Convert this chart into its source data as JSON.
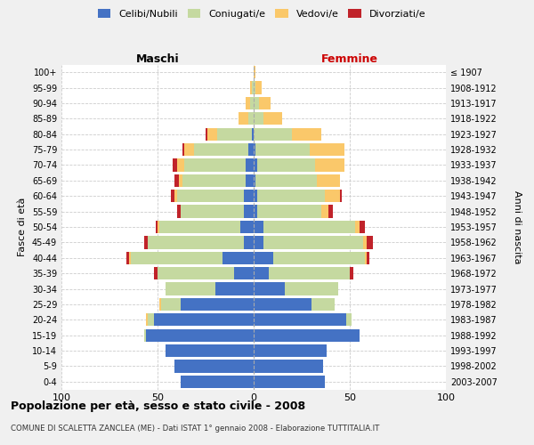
{
  "age_groups": [
    "0-4",
    "5-9",
    "10-14",
    "15-19",
    "20-24",
    "25-29",
    "30-34",
    "35-39",
    "40-44",
    "45-49",
    "50-54",
    "55-59",
    "60-64",
    "65-69",
    "70-74",
    "75-79",
    "80-84",
    "85-89",
    "90-94",
    "95-99",
    "100+"
  ],
  "birth_years": [
    "2003-2007",
    "1998-2002",
    "1993-1997",
    "1988-1992",
    "1983-1987",
    "1978-1982",
    "1973-1977",
    "1968-1972",
    "1963-1967",
    "1958-1962",
    "1953-1957",
    "1948-1952",
    "1943-1947",
    "1938-1942",
    "1933-1937",
    "1928-1932",
    "1923-1927",
    "1918-1922",
    "1913-1917",
    "1908-1912",
    "≤ 1907"
  ],
  "males": {
    "celibi": [
      38,
      41,
      46,
      56,
      52,
      38,
      20,
      10,
      16,
      5,
      7,
      5,
      5,
      4,
      4,
      3,
      1,
      0,
      0,
      0,
      0
    ],
    "coniugati": [
      0,
      0,
      0,
      1,
      3,
      10,
      26,
      40,
      48,
      50,
      42,
      33,
      35,
      33,
      32,
      28,
      18,
      3,
      2,
      1,
      0
    ],
    "vedovi": [
      0,
      0,
      0,
      0,
      1,
      1,
      0,
      0,
      1,
      0,
      1,
      0,
      1,
      2,
      4,
      5,
      5,
      5,
      2,
      1,
      0
    ],
    "divorziati": [
      0,
      0,
      0,
      0,
      0,
      0,
      0,
      2,
      1,
      2,
      1,
      2,
      2,
      2,
      2,
      1,
      1,
      0,
      0,
      0,
      0
    ]
  },
  "females": {
    "nubili": [
      37,
      36,
      38,
      55,
      48,
      30,
      16,
      8,
      10,
      5,
      5,
      2,
      2,
      1,
      2,
      1,
      0,
      0,
      0,
      0,
      0
    ],
    "coniugate": [
      0,
      0,
      0,
      0,
      3,
      12,
      28,
      42,
      48,
      52,
      48,
      33,
      35,
      32,
      30,
      28,
      20,
      5,
      3,
      1,
      0
    ],
    "vedove": [
      0,
      0,
      0,
      0,
      0,
      0,
      0,
      0,
      1,
      2,
      2,
      4,
      8,
      12,
      15,
      18,
      15,
      10,
      6,
      3,
      1
    ],
    "divorziate": [
      0,
      0,
      0,
      0,
      0,
      0,
      0,
      2,
      1,
      3,
      3,
      2,
      1,
      0,
      0,
      0,
      0,
      0,
      0,
      0,
      0
    ]
  },
  "colors": {
    "celibi_nubili": "#4472C4",
    "coniugati": "#C5D9A0",
    "vedovi": "#FAC86A",
    "divorziati": "#C0232A"
  },
  "title": "Popolazione per età, sesso e stato civile - 2008",
  "subtitle": "COMUNE DI SCALETTA ZANCLEA (ME) - Dati ISTAT 1° gennaio 2008 - Elaborazione TUTTITALIA.IT",
  "xlabel_left": "Maschi",
  "xlabel_right": "Femmine",
  "ylabel_left": "Fasce di età",
  "ylabel_right": "Anni di nascita",
  "xlim": 100,
  "bg_color": "#f0f0f0",
  "plot_bg_color": "#ffffff"
}
